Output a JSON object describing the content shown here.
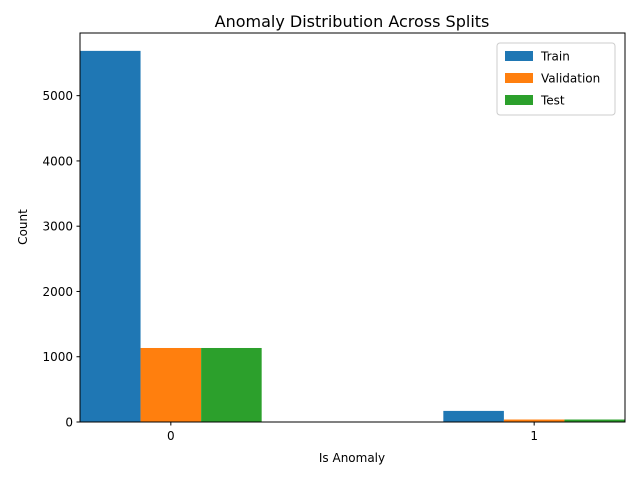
{
  "chart_data": {
    "type": "bar",
    "title": "Anomaly Distribution Across Splits",
    "xlabel": "Is Anomaly",
    "ylabel": "Count",
    "categories": [
      "0",
      "1"
    ],
    "ylim": [
      0,
      5960
    ],
    "yticks": [
      0,
      1000,
      2000,
      3000,
      4000,
      5000
    ],
    "legend_position": "top-right",
    "series": [
      {
        "name": "Train",
        "color": "#1f77b4",
        "values": [
          5686,
          170
        ]
      },
      {
        "name": "Validation",
        "color": "#ff7f0e",
        "values": [
          1134,
          38
        ]
      },
      {
        "name": "Test",
        "color": "#2ca02c",
        "values": [
          1134,
          38
        ]
      }
    ]
  }
}
